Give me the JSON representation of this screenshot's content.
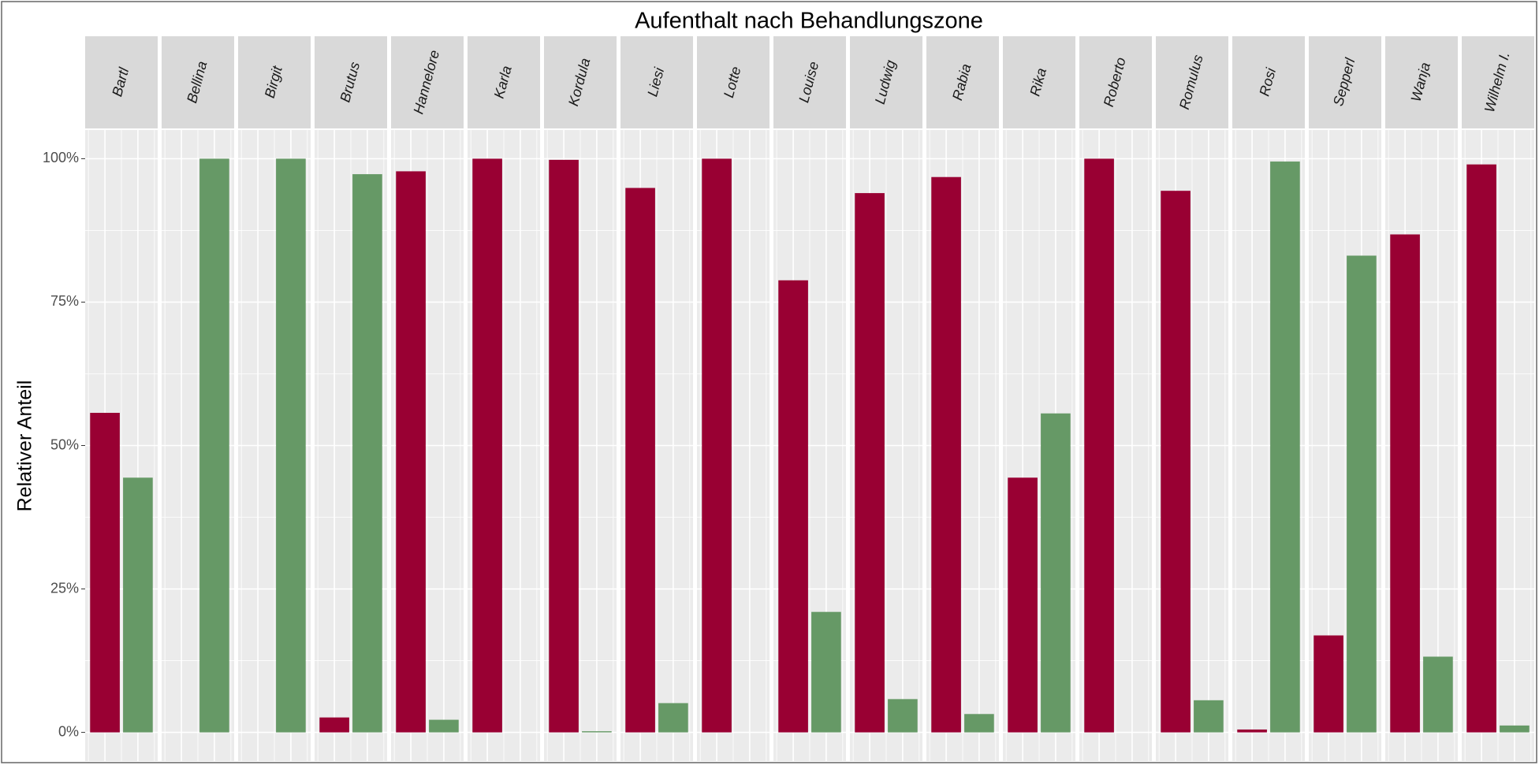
{
  "chart_data": {
    "type": "bar",
    "title": "Aufenthalt nach Behandlungszone",
    "y_label": "Relativer Anteil",
    "categories": [
      "Bartl",
      "Bellina",
      "Birgit",
      "Brutus",
      "Hannelore",
      "Karla",
      "Kordula",
      "Liesi",
      "Lotte",
      "Louise",
      "Ludwig",
      "Rabia",
      "Rika",
      "Roberto",
      "Romulus",
      "Rosi",
      "Sepperl",
      "Wanja",
      "Wilhelm I."
    ],
    "series": [
      {
        "color": "#990033",
        "values": [
          55.7,
          null,
          null,
          2.6,
          97.8,
          100,
          99.8,
          94.9,
          100,
          78.8,
          94.0,
          96.8,
          44.4,
          100,
          94.4,
          0.5,
          16.9,
          86.8,
          99.0
        ]
      },
      {
        "color": "#669966",
        "values": [
          44.4,
          100,
          100,
          97.3,
          2.2,
          null,
          0.2,
          5.1,
          null,
          21.0,
          5.8,
          3.2,
          55.6,
          null,
          5.6,
          99.5,
          83.1,
          13.2,
          1.2
        ]
      }
    ],
    "ylim": [
      -5,
      105
    ],
    "yticks": [
      {
        "value": 0,
        "label": "0%"
      },
      {
        "value": 25,
        "label": "25%"
      },
      {
        "value": 50,
        "label": "50%"
      },
      {
        "value": 75,
        "label": "75%"
      },
      {
        "value": 100,
        "label": "100%"
      }
    ],
    "grid": true
  }
}
